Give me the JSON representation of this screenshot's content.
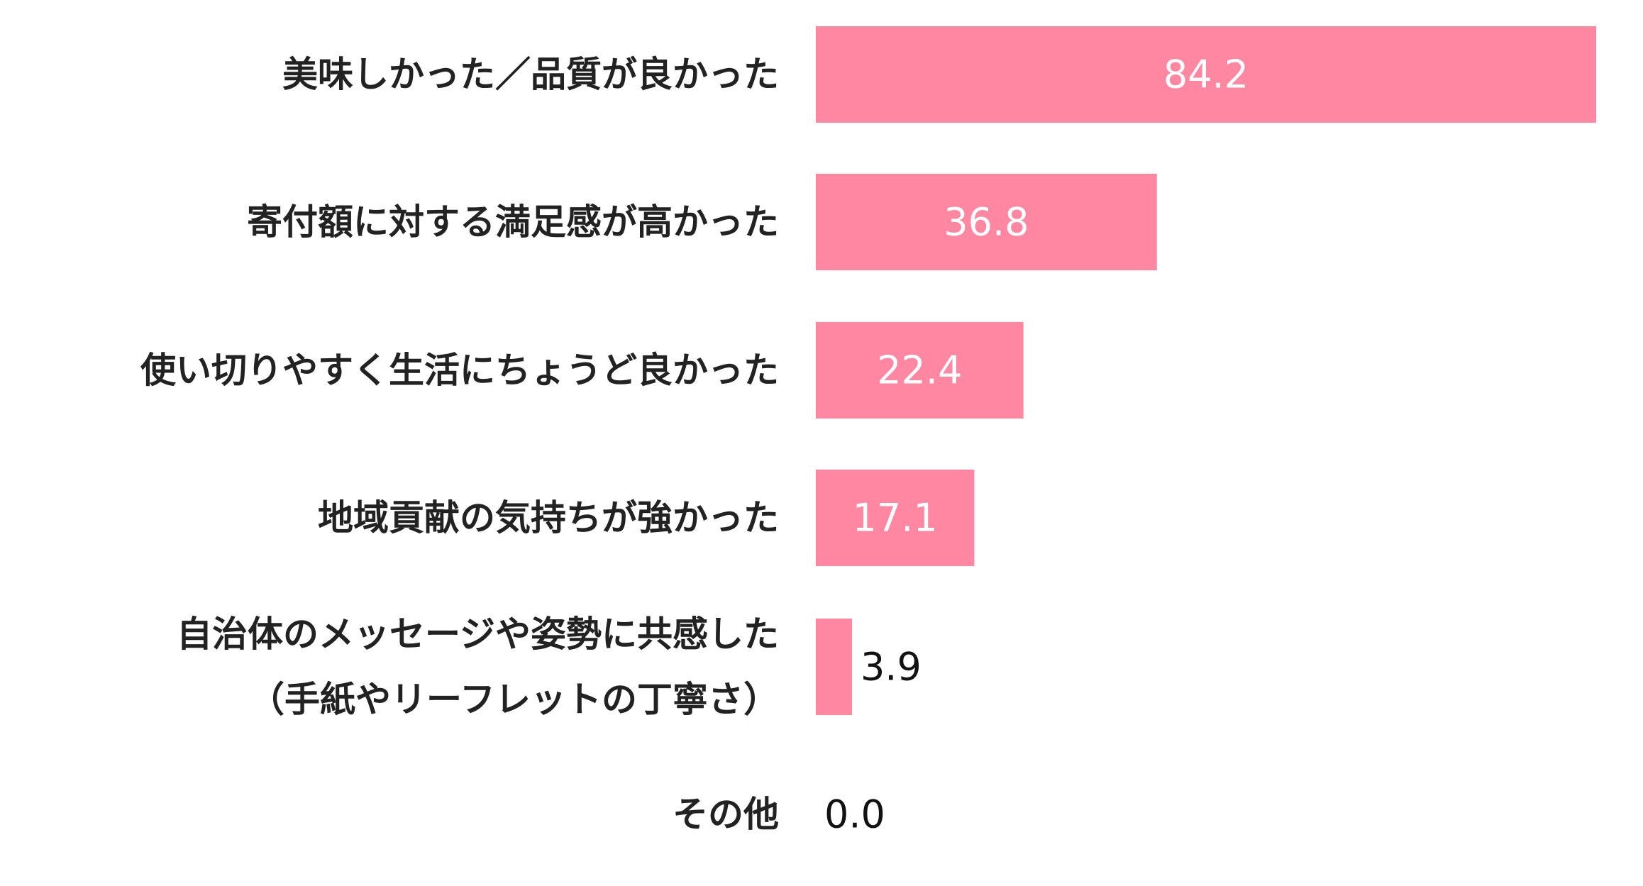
{
  "chart_data": {
    "type": "bar",
    "orientation": "horizontal",
    "categories": [
      [
        "美味しかった／品質が良かった"
      ],
      [
        "寄付額に対する満足感が高かった"
      ],
      [
        "使い切りやすく生活にちょうど良かった"
      ],
      [
        "地域貢献の気持ちが強かった"
      ],
      [
        "自治体のメッセージや姿勢に共感した",
        "（手紙やリーフレットの丁寧さ）"
      ],
      [
        "その他"
      ]
    ],
    "values": [
      84.2,
      36.8,
      22.4,
      17.1,
      3.9,
      0.0
    ],
    "value_labels": [
      "84.2",
      "36.8",
      "22.4",
      "17.1",
      "3.9",
      "0.0"
    ],
    "xlim": [
      0,
      84.2
    ],
    "grid": false,
    "title": "",
    "xlabel": "",
    "ylabel": "",
    "colors": {
      "bar": "#ff87a2",
      "value_inside": "#ffffff",
      "value_outside": "#111111"
    }
  }
}
